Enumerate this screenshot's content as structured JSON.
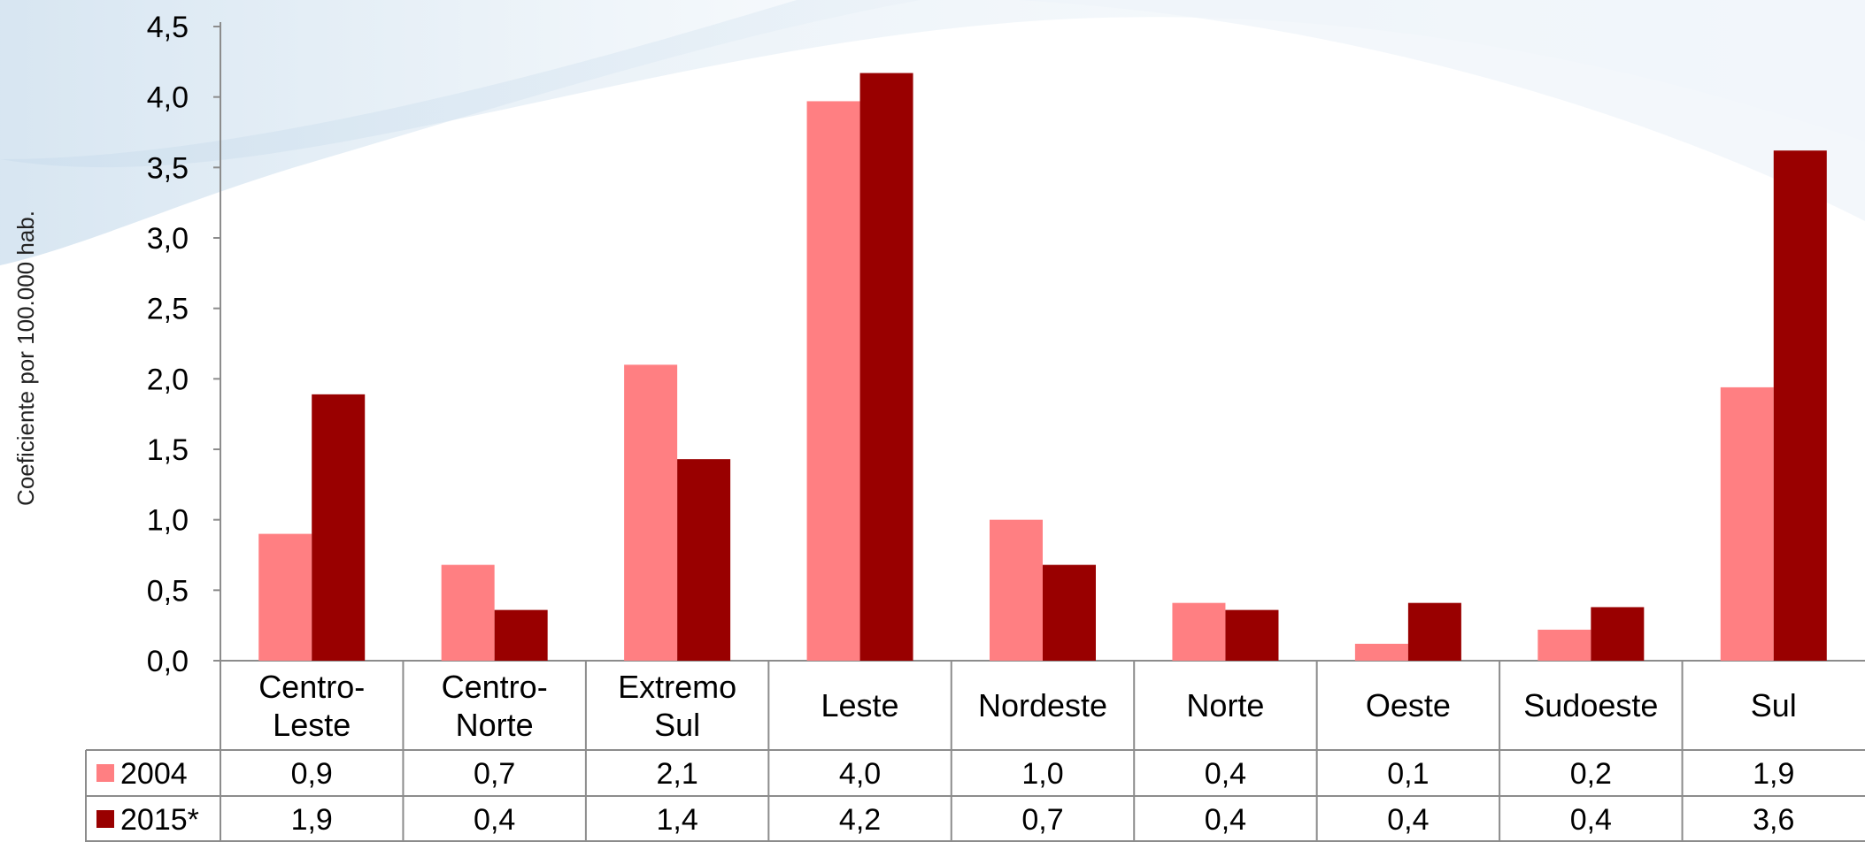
{
  "chart_data": {
    "type": "bar",
    "title": "",
    "xlabel": "",
    "ylabel": "Coeficiente por 100.000 hab.",
    "ylim": [
      0,
      4.5
    ],
    "yticks": [
      "0,0",
      "0,5",
      "1,0",
      "1,5",
      "2,0",
      "2,5",
      "3,0",
      "3,5",
      "4,0",
      "4,5"
    ],
    "grid": false,
    "legend": "data-table-left",
    "categories": [
      [
        "Centro-",
        "Leste"
      ],
      [
        "Centro-",
        "Norte"
      ],
      [
        "Extremo",
        "Sul"
      ],
      [
        "Leste"
      ],
      [
        "Nordeste"
      ],
      [
        "Norte"
      ],
      [
        "Oeste"
      ],
      [
        "Sudoeste"
      ],
      [
        "Sul"
      ]
    ],
    "series": [
      {
        "name": "2004",
        "color": "#FF7F82",
        "values": [
          0.9,
          0.68,
          2.1,
          3.97,
          1.0,
          0.41,
          0.12,
          0.22,
          1.94
        ],
        "labels": [
          "0,9",
          "0,7",
          "2,1",
          "4,0",
          "1,0",
          "0,4",
          "0,1",
          "0,2",
          "1,9"
        ]
      },
      {
        "name": "2015*",
        "color": "#990000",
        "values": [
          1.89,
          0.36,
          1.43,
          4.17,
          0.68,
          0.36,
          0.41,
          0.38,
          3.62
        ],
        "labels": [
          "1,9",
          "0,4",
          "1,4",
          "4,2",
          "0,7",
          "0,4",
          "0,4",
          "0,4",
          "3,6"
        ]
      }
    ]
  }
}
